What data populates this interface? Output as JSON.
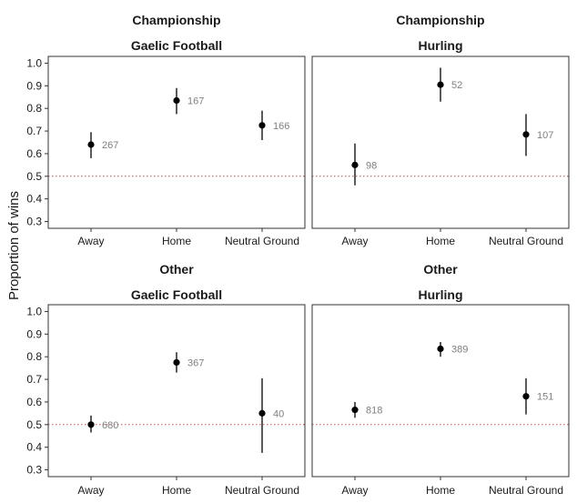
{
  "chart_data": {
    "type": "scatter",
    "ylabel": "Proportion of wins",
    "ylim": [
      0.27,
      1.03
    ],
    "yticks": [
      "0.3",
      "0.4",
      "0.5",
      "0.6",
      "0.7",
      "0.8",
      "0.9",
      "1.0"
    ],
    "reference_line": {
      "y": 0.5,
      "style": "dotted",
      "color": "#c0504d"
    },
    "categories": [
      "Away",
      "Home",
      "Neutral Ground"
    ],
    "panels": [
      {
        "row_label": "Championship",
        "col_label": "Gaelic Football",
        "points": [
          {
            "x": "Away",
            "y": 0.64,
            "lo": 0.58,
            "hi": 0.695,
            "n": "267"
          },
          {
            "x": "Home",
            "y": 0.835,
            "lo": 0.775,
            "hi": 0.89,
            "n": "167"
          },
          {
            "x": "Neutral Ground",
            "y": 0.725,
            "lo": 0.66,
            "hi": 0.79,
            "n": "166"
          }
        ]
      },
      {
        "row_label": "Championship",
        "col_label": "Hurling",
        "points": [
          {
            "x": "Away",
            "y": 0.55,
            "lo": 0.46,
            "hi": 0.645,
            "n": "98"
          },
          {
            "x": "Home",
            "y": 0.905,
            "lo": 0.83,
            "hi": 0.98,
            "n": "52"
          },
          {
            "x": "Neutral Ground",
            "y": 0.685,
            "lo": 0.59,
            "hi": 0.775,
            "n": "107"
          }
        ]
      },
      {
        "row_label": "Other",
        "col_label": "Gaelic Football",
        "points": [
          {
            "x": "Away",
            "y": 0.5,
            "lo": 0.465,
            "hi": 0.54,
            "n": "680"
          },
          {
            "x": "Home",
            "y": 0.775,
            "lo": 0.73,
            "hi": 0.82,
            "n": "367"
          },
          {
            "x": "Neutral Ground",
            "y": 0.55,
            "lo": 0.375,
            "hi": 0.705,
            "n": "40"
          }
        ]
      },
      {
        "row_label": "Other",
        "col_label": "Hurling",
        "points": [
          {
            "x": "Away",
            "y": 0.565,
            "lo": 0.53,
            "hi": 0.6,
            "n": "818"
          },
          {
            "x": "Home",
            "y": 0.835,
            "lo": 0.8,
            "hi": 0.865,
            "n": "389"
          },
          {
            "x": "Neutral Ground",
            "y": 0.625,
            "lo": 0.545,
            "hi": 0.705,
            "n": "151"
          }
        ]
      }
    ]
  }
}
